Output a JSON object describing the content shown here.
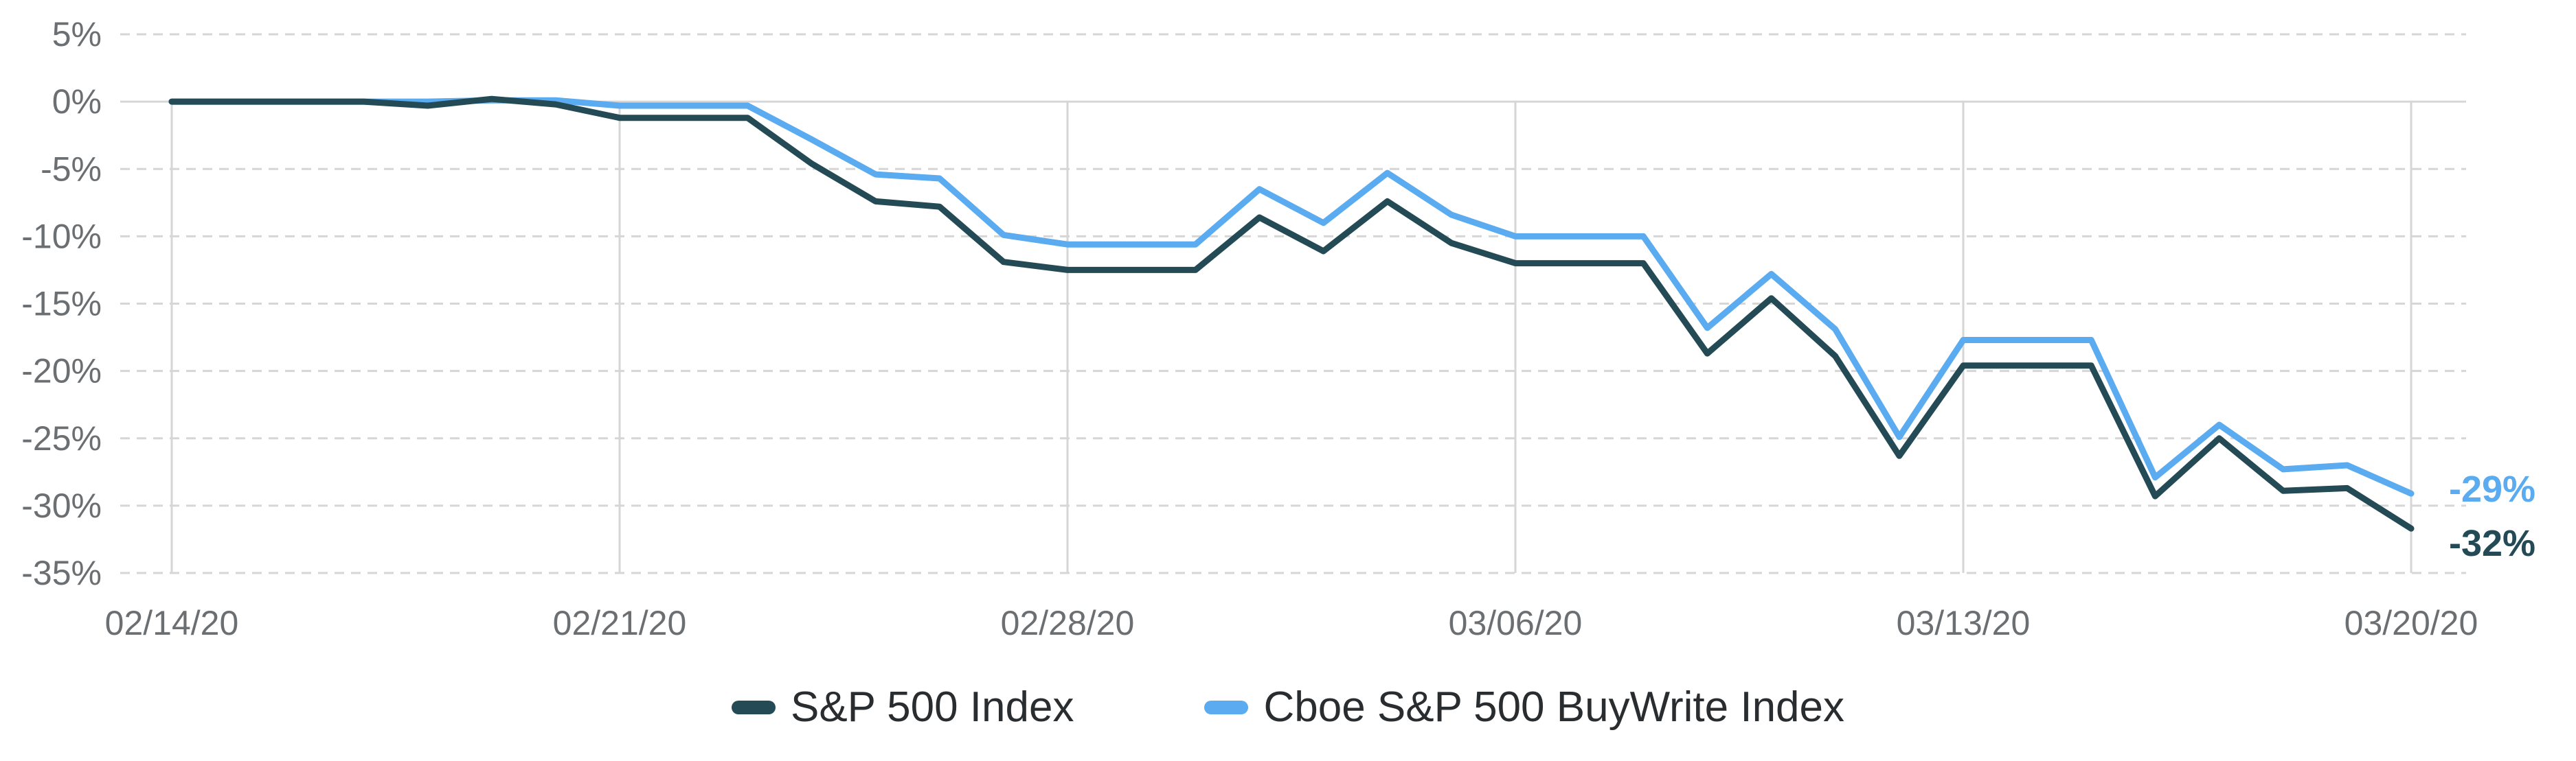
{
  "colors": {
    "sp500": "#234a55",
    "buywrite": "#5aabf0",
    "grid": "#d6d6d6",
    "tick_text": "#6b6f72"
  },
  "legend": {
    "sp500_label": "S&P 500 Index",
    "buywrite_label": "Cboe S&P 500 BuyWrite Index"
  },
  "end_labels": {
    "buywrite": "-29%",
    "sp500": "-32%"
  },
  "chart_data": {
    "type": "line",
    "title": "",
    "xlabel": "",
    "ylabel": "",
    "y_ticks": [
      "5%",
      "0%",
      "-5%",
      "-10%",
      "-15%",
      "-20%",
      "-25%",
      "-30%",
      "-35%"
    ],
    "x_ticks": [
      "02/14/20",
      "02/21/20",
      "02/28/20",
      "03/06/20",
      "03/13/20",
      "03/20/20"
    ],
    "ylim": [
      -35,
      5
    ],
    "grid": true,
    "legend_position": "bottom",
    "x": [
      "2020-02-14",
      "2020-02-15",
      "2020-02-16",
      "2020-02-17",
      "2020-02-18",
      "2020-02-19",
      "2020-02-20",
      "2020-02-21",
      "2020-02-22",
      "2020-02-23",
      "2020-02-24",
      "2020-02-25",
      "2020-02-26",
      "2020-02-27",
      "2020-02-28",
      "2020-02-29",
      "2020-03-01",
      "2020-03-02",
      "2020-03-03",
      "2020-03-04",
      "2020-03-05",
      "2020-03-06",
      "2020-03-07",
      "2020-03-08",
      "2020-03-09",
      "2020-03-10",
      "2020-03-11",
      "2020-03-12",
      "2020-03-13",
      "2020-03-14",
      "2020-03-15",
      "2020-03-16",
      "2020-03-17",
      "2020-03-18",
      "2020-03-19",
      "2020-03-20"
    ],
    "series": [
      {
        "name": "S&P 500 Index",
        "values": [
          0,
          0,
          0,
          0,
          -0.3,
          0.2,
          -0.2,
          -1.2,
          -1.2,
          -1.2,
          -4.6,
          -7.4,
          -7.8,
          -11.9,
          -12.5,
          -12.5,
          -12.5,
          -8.6,
          -11.1,
          -7.4,
          -10.5,
          -12,
          -12,
          -12,
          -18.7,
          -14.6,
          -18.9,
          -26.3,
          -19.6,
          -19.6,
          -19.6,
          -29.3,
          -25,
          -28.9,
          -28.7,
          -31.7
        ]
      },
      {
        "name": "Cboe S&P 500 BuyWrite Index",
        "values": [
          0,
          0,
          0,
          0,
          0,
          0.1,
          0.1,
          -0.3,
          -0.3,
          -0.3,
          -2.8,
          -5.4,
          -5.7,
          -9.9,
          -10.6,
          -10.6,
          -10.6,
          -6.5,
          -9,
          -5.3,
          -8.4,
          -10,
          -10,
          -10,
          -16.8,
          -12.8,
          -16.9,
          -24.9,
          -17.7,
          -17.7,
          -17.7,
          -27.9,
          -24,
          -27.3,
          -27,
          -29.1
        ]
      }
    ]
  }
}
